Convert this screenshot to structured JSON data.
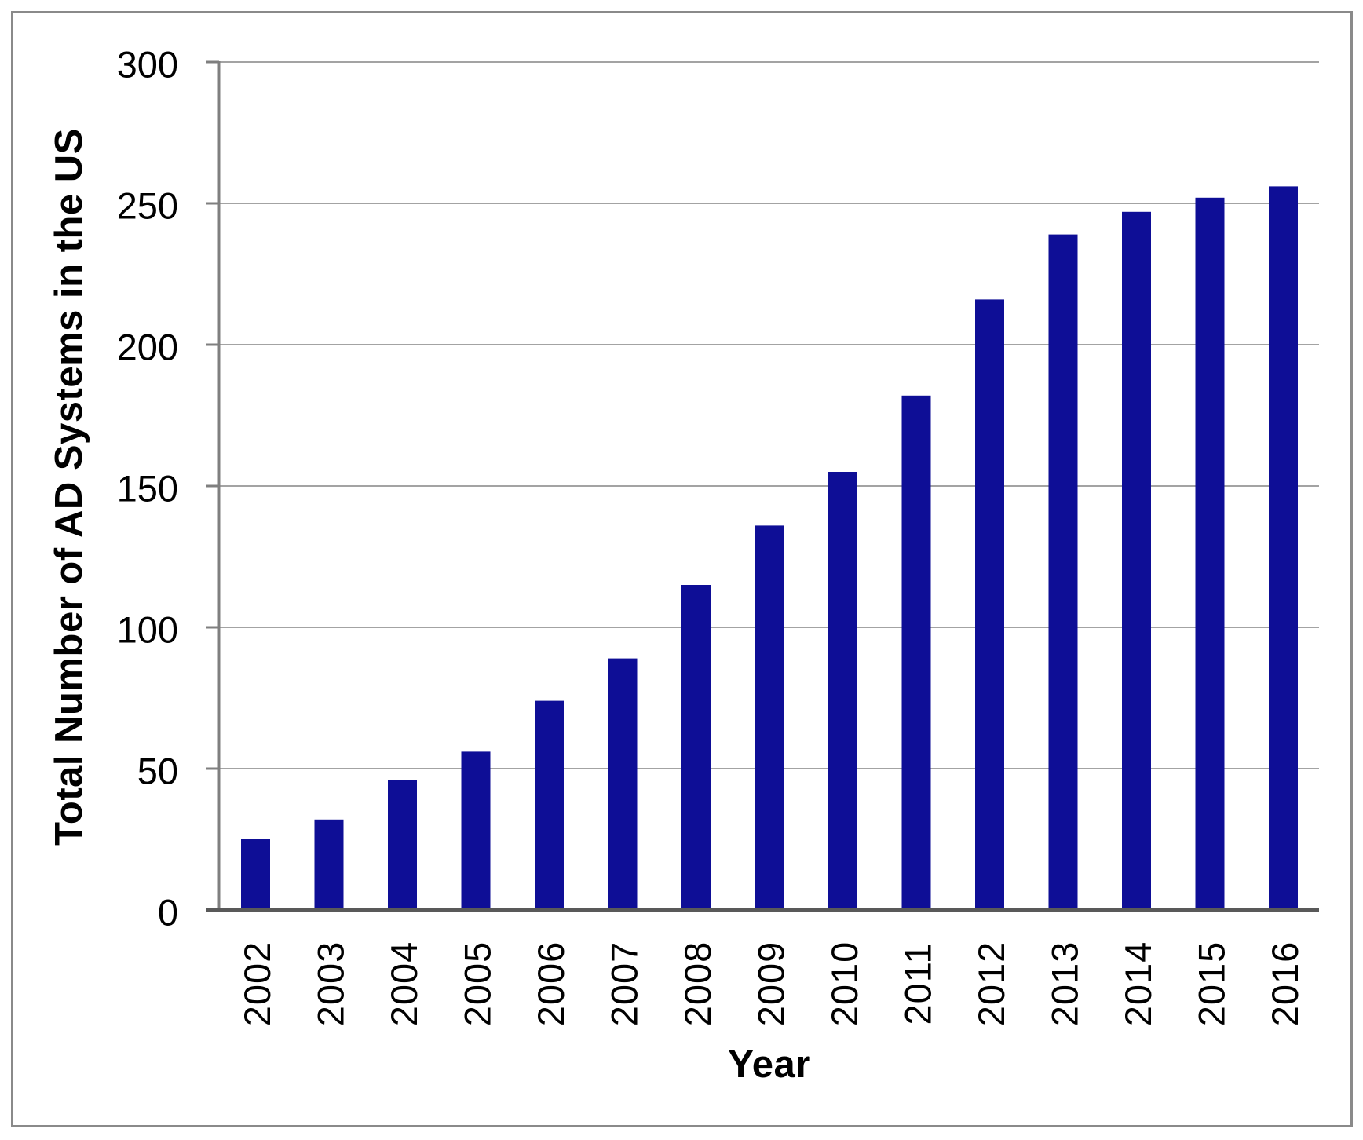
{
  "chart_data": {
    "type": "bar",
    "categories": [
      "2002",
      "2003",
      "2004",
      "2005",
      "2006",
      "2007",
      "2008",
      "2009",
      "2010",
      "2011",
      "2012",
      "2013",
      "2014",
      "2015",
      "2016"
    ],
    "values": [
      25,
      32,
      46,
      56,
      74,
      89,
      115,
      136,
      155,
      182,
      216,
      239,
      247,
      252,
      256
    ],
    "title": "",
    "xlabel": "Year",
    "ylabel": "Total Number of AD Systems in the US",
    "ylim": [
      0,
      300
    ],
    "yticks": [
      0,
      50,
      100,
      150,
      200,
      250,
      300
    ],
    "grid": true,
    "legend_position": "none",
    "colors": {
      "bar": "#0E0E96",
      "gridline": "#A3A3A3",
      "axis_line": "#7F7F7F",
      "baseline": "#595959",
      "text": "#000000",
      "frame_border": "#8A8A8A",
      "background": "#FFFFFF"
    }
  }
}
